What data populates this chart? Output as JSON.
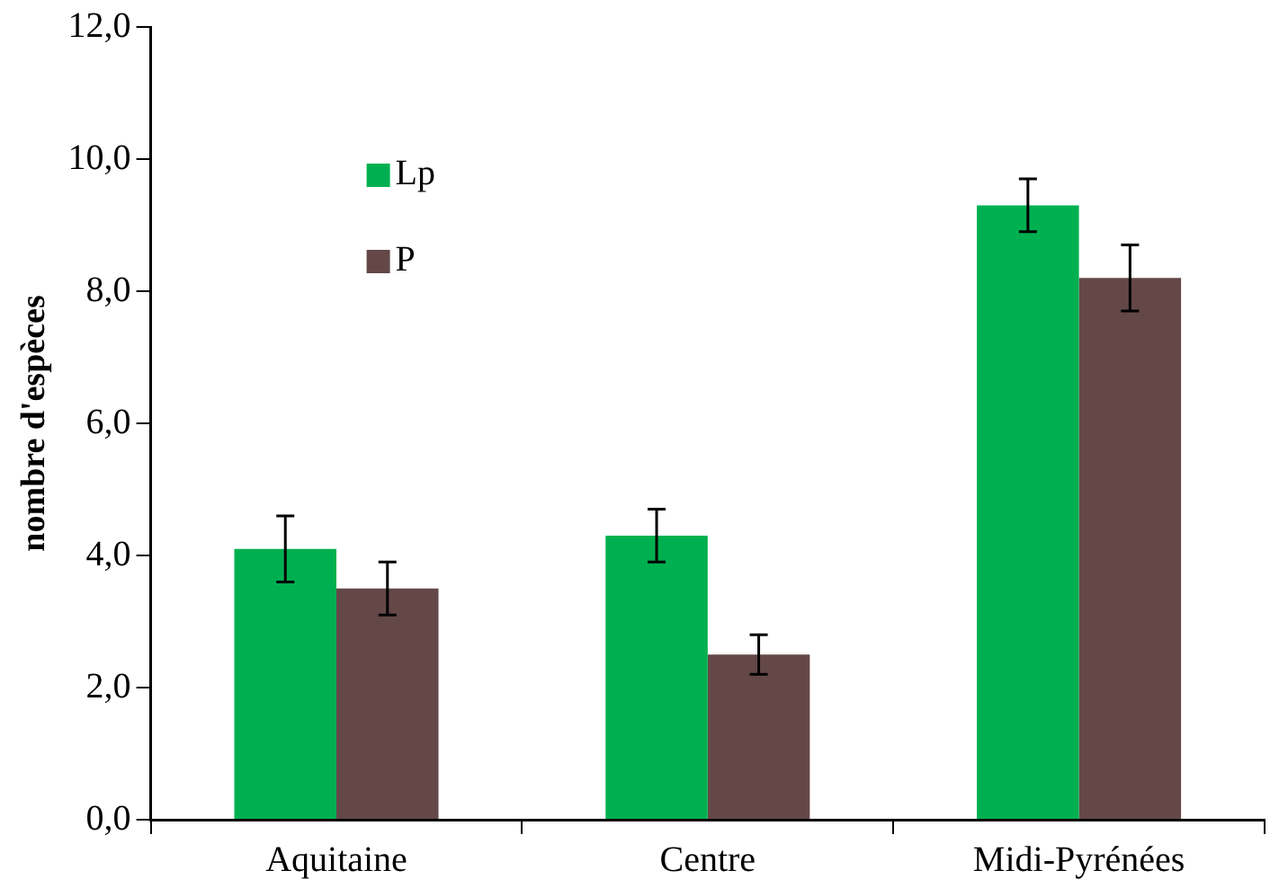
{
  "chart_data": {
    "type": "bar",
    "ylabel": "nombre d'espèces",
    "categories": [
      "Aquitaine",
      "Centre",
      "Midi-Pyrénées"
    ],
    "series": [
      {
        "name": "Lp",
        "color": "#00b050",
        "values": [
          4.1,
          4.3,
          9.3
        ],
        "errors": [
          0.5,
          0.4,
          0.4
        ]
      },
      {
        "name": "P",
        "color": "#644848",
        "values": [
          3.5,
          2.5,
          8.2
        ],
        "errors": [
          0.4,
          0.3,
          0.5
        ]
      }
    ],
    "ylim": [
      0,
      12
    ],
    "yticks": [
      {
        "value": 0,
        "label": "0,0"
      },
      {
        "value": 2,
        "label": "2,0"
      },
      {
        "value": 4,
        "label": "4,0"
      },
      {
        "value": 6,
        "label": "6,0"
      },
      {
        "value": 8,
        "label": "8,0"
      },
      {
        "value": 10,
        "label": "10,0"
      },
      {
        "value": 12,
        "label": "12,0"
      }
    ],
    "grid": false,
    "legend": "top left"
  }
}
